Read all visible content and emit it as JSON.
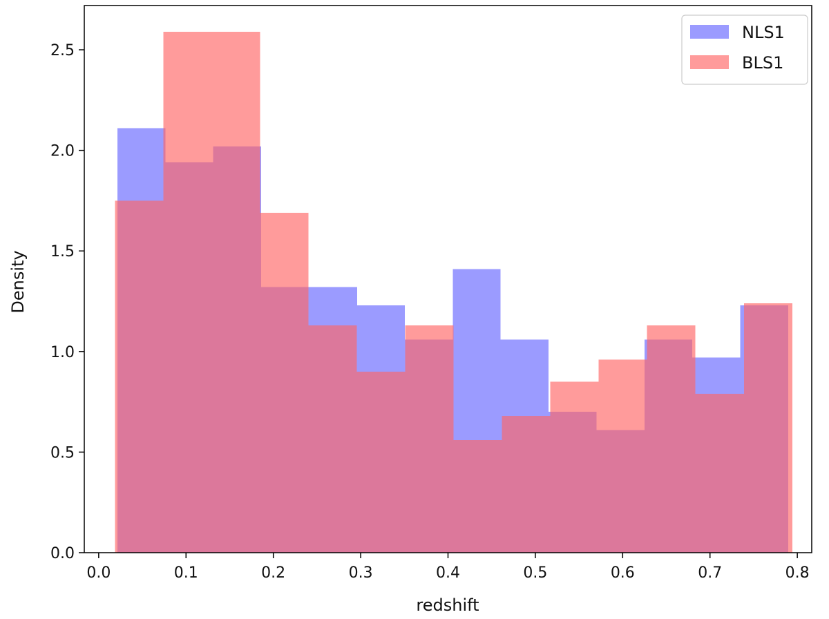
{
  "chart_data": {
    "type": "bar",
    "subtype": "overlaid histogram",
    "xlabel": "redshift",
    "ylabel": "Density",
    "xlim": [
      -0.0165,
      0.8165
    ],
    "ylim": [
      0,
      2.72
    ],
    "x_ticks": [
      0.0,
      0.1,
      0.2,
      0.3,
      0.4,
      0.5,
      0.6,
      0.7,
      0.8
    ],
    "x_tick_labels": [
      "0.0",
      "0.1",
      "0.2",
      "0.3",
      "0.4",
      "0.5",
      "0.6",
      "0.7",
      "0.8"
    ],
    "y_ticks": [
      0.0,
      0.5,
      1.0,
      1.5,
      2.0,
      2.5
    ],
    "y_tick_labels": [
      "0.0",
      "0.5",
      "1.0",
      "1.5",
      "2.0",
      "2.5"
    ],
    "grid": false,
    "legend_position": "top-right",
    "series": [
      {
        "name": "NLS1",
        "color": "#6666ff",
        "opacity": 0.65,
        "bin_edges": [
          0.0215,
          0.0763,
          0.1312,
          0.1861,
          0.2409,
          0.2958,
          0.3506,
          0.4055,
          0.4603,
          0.5152,
          0.5701,
          0.6249,
          0.6798,
          0.7346,
          0.7895
        ],
        "values": [
          2.11,
          1.94,
          2.02,
          1.32,
          1.32,
          1.23,
          1.06,
          1.41,
          1.06,
          0.7,
          0.61,
          1.06,
          0.97,
          1.23
        ]
      },
      {
        "name": "BLS1",
        "color": "#ff6666",
        "opacity": 0.65,
        "bin_edges": [
          0.0186,
          0.074,
          0.1294,
          0.1848,
          0.2402,
          0.2956,
          0.351,
          0.4064,
          0.4618,
          0.5172,
          0.5726,
          0.628,
          0.6834,
          0.7388,
          0.7942
        ],
        "values": [
          1.75,
          2.59,
          2.59,
          1.69,
          1.13,
          0.9,
          1.13,
          0.56,
          0.68,
          0.85,
          0.96,
          1.13,
          0.79,
          1.24
        ]
      }
    ]
  },
  "colors": {
    "overlap": "#c05c98",
    "axes": "#000000"
  }
}
